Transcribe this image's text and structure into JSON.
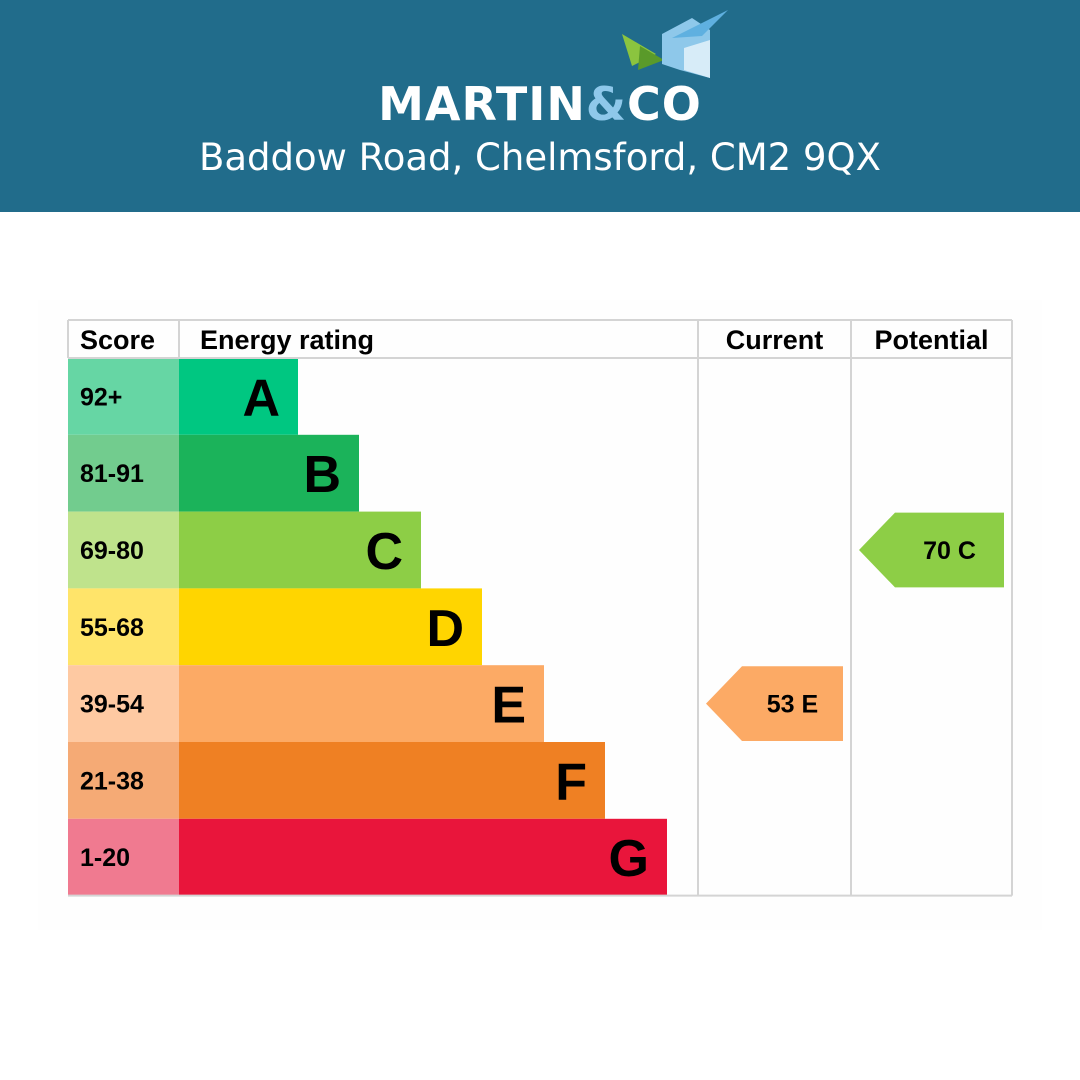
{
  "header": {
    "brand_name": "MARTIN",
    "brand_amp": "&",
    "brand_suffix": "CO",
    "address": "Baddow Road, Chelmsford, CM2 9QX",
    "background_color": "#216c8b"
  },
  "chart_data": {
    "type": "table",
    "columns": [
      "Score",
      "Energy rating",
      "Current",
      "Potential"
    ],
    "bands": [
      {
        "score": "92+",
        "letter": "A",
        "color": "#00c781",
        "score_bg": "#66d6a4"
      },
      {
        "score": "81-91",
        "letter": "B",
        "color": "#1bb35a",
        "score_bg": "#72cc8e"
      },
      {
        "score": "69-80",
        "letter": "C",
        "color": "#8dce46",
        "score_bg": "#bfe38c"
      },
      {
        "score": "55-68",
        "letter": "D",
        "color": "#ffd500",
        "score_bg": "#ffe46a"
      },
      {
        "score": "39-54",
        "letter": "E",
        "color": "#fcaa65",
        "score_bg": "#fec9a2"
      },
      {
        "score": "21-38",
        "letter": "F",
        "color": "#ef8023",
        "score_bg": "#f5aa75"
      },
      {
        "score": "1-20",
        "letter": "G",
        "color": "#e9153b",
        "score_bg": "#f07a90"
      }
    ],
    "current": {
      "value": 53,
      "letter": "E",
      "label": "53  E"
    },
    "potential": {
      "value": 70,
      "letter": "C",
      "label": "70  C"
    }
  }
}
